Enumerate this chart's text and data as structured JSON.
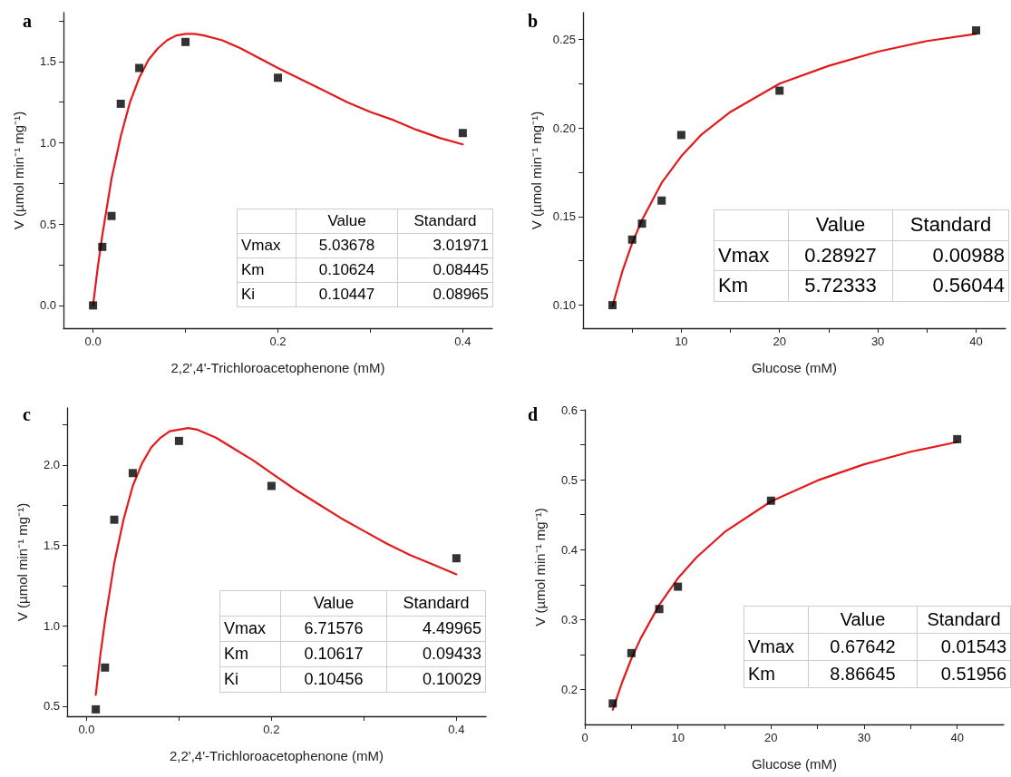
{
  "chart_data": [
    {
      "type": "scatter",
      "title": "a",
      "xlabel": "2,2',4'-Trichloroacetophenone (mM)",
      "ylabel": "V (µmol min⁻¹ mg⁻¹)",
      "xlim": [
        -0.032,
        0.432
      ],
      "ylim": [
        -0.14,
        1.8
      ],
      "xticks": [
        {
          "value": 0,
          "label": "0.0"
        },
        {
          "value": 0.1,
          "label": null
        },
        0.2,
        {
          "value": 0.3,
          "label": null
        },
        0.4
      ],
      "yticks": [
        {
          "value": 0,
          "label": "0.0"
        },
        {
          "value": 0.25,
          "label": null
        },
        {
          "value": 0.5,
          "label": "0.5"
        },
        {
          "value": 0.75,
          "label": null
        },
        {
          "value": 1,
          "label": "1.0"
        },
        {
          "value": 1.25,
          "label": null
        },
        {
          "value": 1.5,
          "label": "1.5"
        },
        {
          "value": 1.75,
          "label": null
        }
      ],
      "grid": false,
      "annotations": [
        "Value",
        "Standard",
        "Vmax",
        "5.03678",
        "3.01971",
        "Km",
        "0.10624",
        "0.08445",
        "Ki",
        "0.10447",
        "0.08965"
      ],
      "series": [
        {
          "type": "scatter",
          "color": "#000000",
          "marker": "square",
          "x": [
            0,
            0.01,
            0.02,
            0.03,
            0.05,
            0.1,
            0.2,
            0.4
          ],
          "values": [
            0,
            0.36,
            0.55,
            1.24,
            1.46,
            1.62,
            1.4,
            1.06
          ]
        },
        {
          "type": "line",
          "color": "#e31a1c",
          "marker": "none",
          "line_style": "solid",
          "x": [
            0,
            0.005,
            0.01,
            0.02,
            0.03,
            0.04,
            0.05,
            0.06,
            0.07,
            0.08,
            0.09,
            0.1,
            0.11,
            0.12,
            0.14,
            0.16,
            0.18,
            0.2,
            0.225,
            0.25,
            0.275,
            0.3,
            0.325,
            0.35,
            0.375,
            0.4
          ],
          "values": [
            0,
            0.23,
            0.43,
            0.78,
            1.04,
            1.25,
            1.4,
            1.51,
            1.58,
            1.63,
            1.66,
            1.67,
            1.67,
            1.66,
            1.63,
            1.58,
            1.52,
            1.46,
            1.39,
            1.32,
            1.25,
            1.19,
            1.14,
            1.08,
            1.03,
            0.99
          ]
        }
      ]
    },
    {
      "type": "scatter",
      "title": "b",
      "xlabel": "Glucose (mM)",
      "ylabel": "V (µmol min⁻¹ mg⁻¹)",
      "xlim": [
        0,
        43
      ],
      "ylim": [
        0.087,
        0.265
      ],
      "xticks": [
        {
          "value": 5,
          "label": null
        },
        10,
        {
          "value": 15,
          "label": null
        },
        20,
        {
          "value": 25,
          "label": null
        },
        30,
        {
          "value": 35,
          "label": null
        },
        40
      ],
      "yticks": [
        {
          "value": 0.1,
          "label": "0.10"
        },
        {
          "value": 0.125,
          "label": null
        },
        {
          "value": 0.15,
          "label": "0.15"
        },
        {
          "value": 0.175,
          "label": null
        },
        {
          "value": 0.2,
          "label": "0.20"
        },
        {
          "value": 0.225,
          "label": null
        },
        {
          "value": 0.25,
          "label": "0.25"
        }
      ],
      "grid": false,
      "annotations": [
        "Value",
        "Standard",
        "Vmax",
        "0.28927",
        "0.00988",
        "Km",
        "5.72333",
        "0.56044"
      ],
      "series": [
        {
          "type": "scatter",
          "color": "#000000",
          "marker": "square",
          "x": [
            3,
            5,
            6,
            8,
            10,
            20,
            40
          ],
          "values": [
            0.1,
            0.137,
            0.146,
            0.159,
            0.196,
            0.221,
            0.255
          ]
        },
        {
          "type": "line",
          "color": "#e31a1c",
          "marker": "none",
          "line_style": "solid",
          "x": [
            3,
            4,
            5,
            6,
            8,
            10,
            12,
            15,
            20,
            25,
            30,
            35,
            40
          ],
          "values": [
            0.0995,
            0.119,
            0.135,
            0.148,
            0.169,
            0.184,
            0.196,
            0.209,
            0.225,
            0.235,
            0.243,
            0.249,
            0.253
          ]
        }
      ]
    },
    {
      "type": "scatter",
      "title": "c",
      "xlabel": "2,2',4'-Trichloroacetophenone (mM)",
      "ylabel": "V (µmol min⁻¹ mg⁻¹)",
      "xlim": [
        -0.021,
        0.432
      ],
      "ylim": [
        0.437,
        2.355
      ],
      "xticks": [
        {
          "value": 0,
          "label": "0.0"
        },
        {
          "value": 0.1,
          "label": null
        },
        0.2,
        {
          "value": 0.3,
          "label": null
        },
        0.4
      ],
      "yticks": [
        {
          "value": 0.5,
          "label": "0.5"
        },
        {
          "value": 0.75,
          "label": null
        },
        {
          "value": 1,
          "label": "1.0"
        },
        {
          "value": 1.25,
          "label": null
        },
        {
          "value": 1.5,
          "label": "1.5"
        },
        {
          "value": 1.75,
          "label": null
        },
        {
          "value": 2,
          "label": "2.0"
        },
        {
          "value": 2.25,
          "label": null
        }
      ],
      "grid": false,
      "annotations": [
        "Value",
        "Standard",
        "Vmax",
        "6.71576",
        "4.49965",
        "Km",
        "0.10617",
        "0.09433",
        "Ki",
        "0.10456",
        "0.10029"
      ],
      "series": [
        {
          "type": "scatter",
          "color": "#000000",
          "marker": "square",
          "x": [
            0.01,
            0.02,
            0.03,
            0.05,
            0.1,
            0.2,
            0.4
          ],
          "values": [
            0.48,
            0.74,
            1.66,
            1.95,
            2.15,
            1.87,
            1.42
          ]
        },
        {
          "type": "line",
          "color": "#e31a1c",
          "marker": "none",
          "line_style": "solid",
          "x": [
            0.01,
            0.015,
            0.02,
            0.03,
            0.04,
            0.05,
            0.06,
            0.07,
            0.08,
            0.09,
            0.1,
            0.11,
            0.12,
            0.14,
            0.16,
            0.18,
            0.2,
            0.225,
            0.25,
            0.275,
            0.3,
            0.325,
            0.35,
            0.375,
            0.4
          ],
          "values": [
            0.57,
            0.82,
            1.03,
            1.39,
            1.66,
            1.87,
            2.01,
            2.11,
            2.17,
            2.21,
            2.22,
            2.23,
            2.22,
            2.17,
            2.1,
            2.03,
            1.95,
            1.85,
            1.76,
            1.67,
            1.59,
            1.51,
            1.44,
            1.38,
            1.32
          ]
        }
      ]
    },
    {
      "type": "scatter",
      "title": "d",
      "xlabel": "Glucose (mM)",
      "ylabel": "V (µmol min⁻¹ mg⁻¹)",
      "xlim": [
        0,
        45
      ],
      "ylim": [
        0.15,
        0.6
      ],
      "xticks": [
        0,
        {
          "value": 5,
          "label": null
        },
        10,
        {
          "value": 15,
          "label": null
        },
        20,
        {
          "value": 25,
          "label": null
        },
        30,
        {
          "value": 35,
          "label": null
        },
        40
      ],
      "yticks": [
        0.2,
        {
          "value": 0.25,
          "label": null
        },
        0.3,
        {
          "value": 0.35,
          "label": null
        },
        0.4,
        {
          "value": 0.45,
          "label": null
        },
        0.5,
        {
          "value": 0.55,
          "label": null
        },
        0.6
      ],
      "grid": false,
      "annotations": [
        "Value",
        "Standard",
        "Vmax",
        "0.67642",
        "0.01543",
        "Km",
        "8.86645",
        "0.51956"
      ],
      "series": [
        {
          "type": "scatter",
          "color": "#000000",
          "marker": "square",
          "x": [
            3,
            5,
            8,
            10,
            20,
            40
          ],
          "values": [
            0.18,
            0.252,
            0.315,
            0.347,
            0.47,
            0.558
          ]
        },
        {
          "type": "line",
          "color": "#e31a1c",
          "marker": "none",
          "line_style": "solid",
          "x": [
            3,
            4,
            5,
            6,
            8,
            10,
            12,
            15,
            20,
            25,
            30,
            35,
            40
          ],
          "values": [
            0.171,
            0.21,
            0.244,
            0.273,
            0.321,
            0.359,
            0.389,
            0.425,
            0.469,
            0.499,
            0.522,
            0.54,
            0.554
          ]
        }
      ]
    }
  ]
}
